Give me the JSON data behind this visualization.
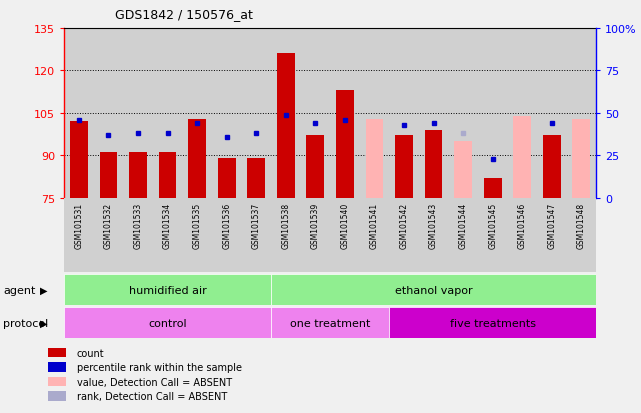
{
  "title": "GDS1842 / 150576_at",
  "samples": [
    "GSM101531",
    "GSM101532",
    "GSM101533",
    "GSM101534",
    "GSM101535",
    "GSM101536",
    "GSM101537",
    "GSM101538",
    "GSM101539",
    "GSM101540",
    "GSM101541",
    "GSM101542",
    "GSM101543",
    "GSM101544",
    "GSM101545",
    "GSM101546",
    "GSM101547",
    "GSM101548"
  ],
  "count_values": [
    102,
    91,
    91,
    91,
    103,
    89,
    89,
    126,
    97,
    113,
    null,
    97,
    99,
    null,
    82,
    null,
    97,
    null
  ],
  "count_absent": [
    null,
    null,
    null,
    null,
    null,
    null,
    null,
    null,
    null,
    null,
    103,
    null,
    null,
    95,
    null,
    104,
    null,
    103
  ],
  "percentile_values": [
    46,
    37,
    38,
    38,
    44,
    36,
    38,
    49,
    44,
    46,
    null,
    43,
    44,
    null,
    23,
    null,
    44,
    null
  ],
  "percentile_absent": [
    null,
    null,
    null,
    null,
    null,
    null,
    null,
    null,
    null,
    null,
    null,
    null,
    null,
    38,
    null,
    null,
    44,
    null
  ],
  "ylim_left": [
    75,
    135
  ],
  "ylim_right": [
    0,
    100
  ],
  "yticks_left": [
    75,
    90,
    105,
    120,
    135
  ],
  "yticks_right": [
    0,
    25,
    50,
    75,
    100
  ],
  "bar_color_present": "#cc0000",
  "bar_color_absent": "#ffb3b3",
  "dot_color_present": "#0000cc",
  "dot_color_absent": "#aaaacc",
  "bg_color": "#d0d0d0",
  "plot_bg": "#ffffff",
  "fig_bg": "#f0f0f0",
  "agents": [
    {
      "label": "humidified air",
      "start": 0,
      "end": 7,
      "color": "#90ee90"
    },
    {
      "label": "ethanol vapor",
      "start": 7,
      "end": 18,
      "color": "#90ee90"
    }
  ],
  "protocols": [
    {
      "label": "control",
      "start": 0,
      "end": 7,
      "color": "#ee82ee"
    },
    {
      "label": "one treatment",
      "start": 7,
      "end": 11,
      "color": "#ee82ee"
    },
    {
      "label": "five treatments",
      "start": 11,
      "end": 18,
      "color": "#cc00cc"
    }
  ],
  "legend_items": [
    {
      "label": "count",
      "color": "#cc0000"
    },
    {
      "label": "percentile rank within the sample",
      "color": "#0000cc"
    },
    {
      "label": "value, Detection Call = ABSENT",
      "color": "#ffb3b3"
    },
    {
      "label": "rank, Detection Call = ABSENT",
      "color": "#aaaacc"
    }
  ],
  "grid_lines": [
    90,
    105,
    120
  ],
  "n_samples": 18
}
